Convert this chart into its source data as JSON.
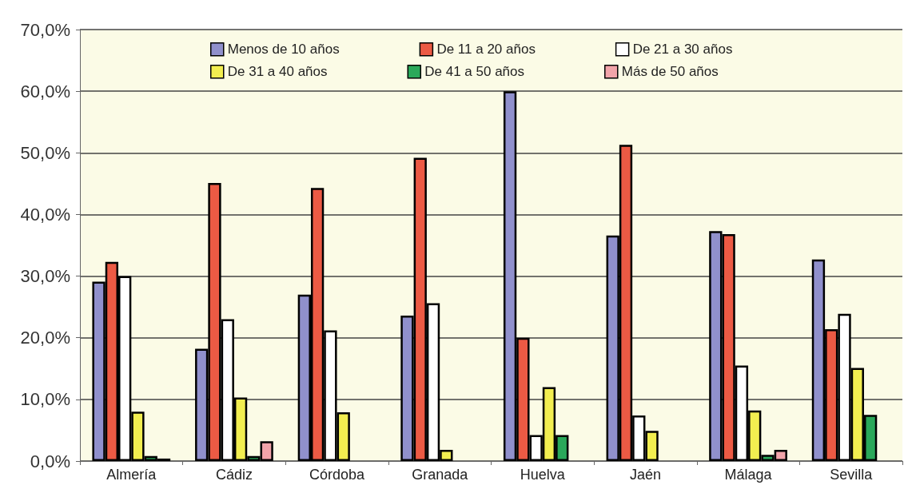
{
  "chart_data": {
    "type": "bar",
    "categories": [
      "Almería",
      "Cádiz",
      "Córdoba",
      "Granada",
      "Huelva",
      "Jaén",
      "Málaga",
      "Sevilla"
    ],
    "series": [
      {
        "name": "Menos de 10 años",
        "color": "#9090cc",
        "values": [
          29.1,
          18.2,
          27.0,
          23.6,
          60.0,
          36.6,
          37.3,
          32.7
        ]
      },
      {
        "name": "De 11 a 20 años",
        "color": "#ec5a44",
        "values": [
          32.3,
          45.1,
          44.3,
          49.2,
          20.0,
          51.3,
          36.8,
          21.4
        ]
      },
      {
        "name": "De 21 a 30 años",
        "color": "#ffffff",
        "values": [
          30.0,
          23.0,
          21.2,
          25.6,
          4.2,
          7.4,
          15.5,
          23.9
        ]
      },
      {
        "name": "De 31 a 40 años",
        "color": "#f2ee50",
        "values": [
          8.0,
          10.3,
          7.9,
          1.8,
          12.0,
          4.9,
          8.2,
          15.1
        ]
      },
      {
        "name": "De 41 a 50 años",
        "color": "#2aa85a",
        "values": [
          0.8,
          0.8,
          null,
          null,
          4.2,
          null,
          1.0,
          7.5
        ]
      },
      {
        "name": "Más de 50 años",
        "color": "#f2a4aa",
        "values": [
          0.4,
          3.2,
          null,
          null,
          null,
          null,
          1.8,
          null
        ]
      }
    ],
    "ylim": [
      0,
      70
    ],
    "yticks": [
      {
        "value": 0,
        "label": "0,0%"
      },
      {
        "value": 10,
        "label": "10,0%"
      },
      {
        "value": 20,
        "label": "20,0%"
      },
      {
        "value": 30,
        "label": "30,0%"
      },
      {
        "value": 40,
        "label": "40,0%"
      },
      {
        "value": 50,
        "label": "50,0%"
      },
      {
        "value": 60,
        "label": "60,0%"
      },
      {
        "value": 70,
        "label": "70,0%"
      }
    ],
    "grid": "y",
    "legend": "top"
  }
}
